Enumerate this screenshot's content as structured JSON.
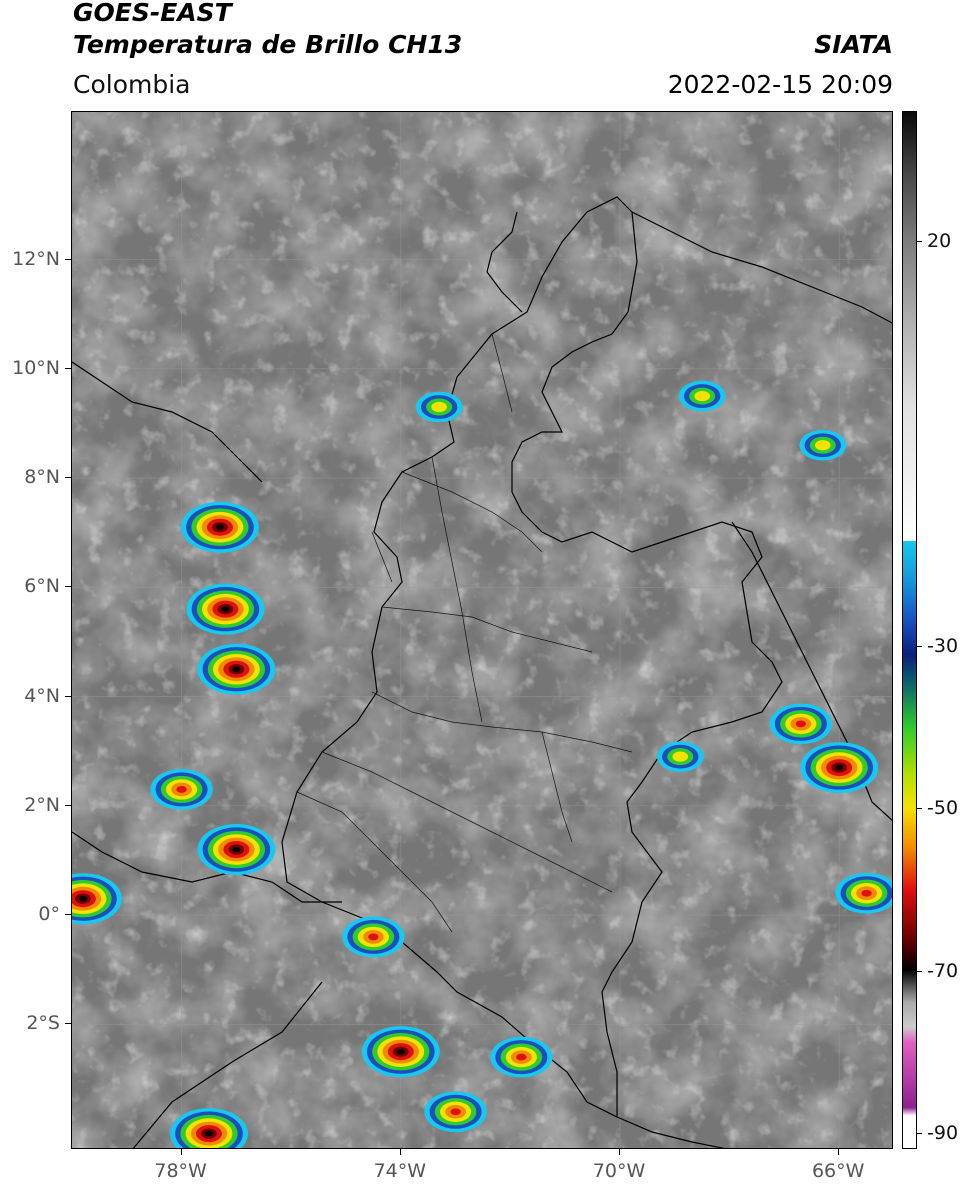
{
  "header": {
    "title_line1": "GOES-EAST",
    "title_line2": "Temperatura de Brillo CH13",
    "region": "Colombia",
    "agency": "SIATA",
    "timestamp": "2022-02-15 20:09"
  },
  "map": {
    "lat_range": [
      -4.3,
      14.7
    ],
    "lon_range": [
      -80,
      -65
    ],
    "lat_ticks": [
      {
        "value": 12,
        "label": "12°N"
      },
      {
        "value": 10,
        "label": "10°N"
      },
      {
        "value": 8,
        "label": "8°N"
      },
      {
        "value": 6,
        "label": "6°N"
      },
      {
        "value": 4,
        "label": "4°N"
      },
      {
        "value": 2,
        "label": "2°N"
      },
      {
        "value": 0,
        "label": "0°"
      },
      {
        "value": -2,
        "label": "2°S"
      }
    ],
    "lon_ticks": [
      {
        "value": -78,
        "label": "78°W"
      },
      {
        "value": -74,
        "label": "74°W"
      },
      {
        "value": -70,
        "label": "70°W"
      },
      {
        "value": -66,
        "label": "66°W"
      }
    ],
    "storm_cells": [
      {
        "lon": -77.3,
        "lat": 7.1,
        "intensity": "cold"
      },
      {
        "lon": -77.2,
        "lat": 5.6,
        "intensity": "cold"
      },
      {
        "lon": -77.0,
        "lat": 4.5,
        "intensity": "cold"
      },
      {
        "lon": -77.0,
        "lat": 1.2,
        "intensity": "cold"
      },
      {
        "lon": -79.8,
        "lat": 0.3,
        "intensity": "cold"
      },
      {
        "lon": -74.5,
        "lat": -0.4,
        "intensity": "moderate"
      },
      {
        "lon": -74.0,
        "lat": -2.5,
        "intensity": "cold"
      },
      {
        "lon": -71.8,
        "lat": -2.6,
        "intensity": "moderate"
      },
      {
        "lon": -66.0,
        "lat": 2.7,
        "intensity": "cold"
      },
      {
        "lon": -65.5,
        "lat": 0.4,
        "intensity": "moderate"
      },
      {
        "lon": -73.3,
        "lat": 9.3,
        "intensity": "mild"
      },
      {
        "lon": -68.5,
        "lat": 9.5,
        "intensity": "mild"
      },
      {
        "lon": -66.3,
        "lat": 8.6,
        "intensity": "mild"
      },
      {
        "lon": -78.0,
        "lat": 2.3,
        "intensity": "moderate"
      },
      {
        "lon": -77.5,
        "lat": -4.0,
        "intensity": "cold"
      },
      {
        "lon": -73.0,
        "lat": -3.6,
        "intensity": "moderate"
      },
      {
        "lon": -68.9,
        "lat": 2.9,
        "intensity": "mild"
      },
      {
        "lon": -66.7,
        "lat": 3.5,
        "intensity": "moderate"
      }
    ]
  },
  "colorbar": {
    "ticks": [
      {
        "value": 20,
        "label": "20"
      },
      {
        "value": -30,
        "label": "-30"
      },
      {
        "value": -50,
        "label": "-50"
      },
      {
        "value": -70,
        "label": "-70"
      },
      {
        "value": -90,
        "label": "-90"
      }
    ],
    "range": [
      -92,
      36
    ],
    "colors": {
      "cyan": "#19c8ef",
      "blue": "#1a4fbf",
      "navy": "#0b1f7a",
      "green": "#2ecc2e",
      "yellow": "#f5e200",
      "orange": "#f28a00",
      "red": "#e01010",
      "darkred": "#6e0000",
      "black": "#000000",
      "pink": "#e060c0",
      "purple": "#8e2090"
    }
  }
}
